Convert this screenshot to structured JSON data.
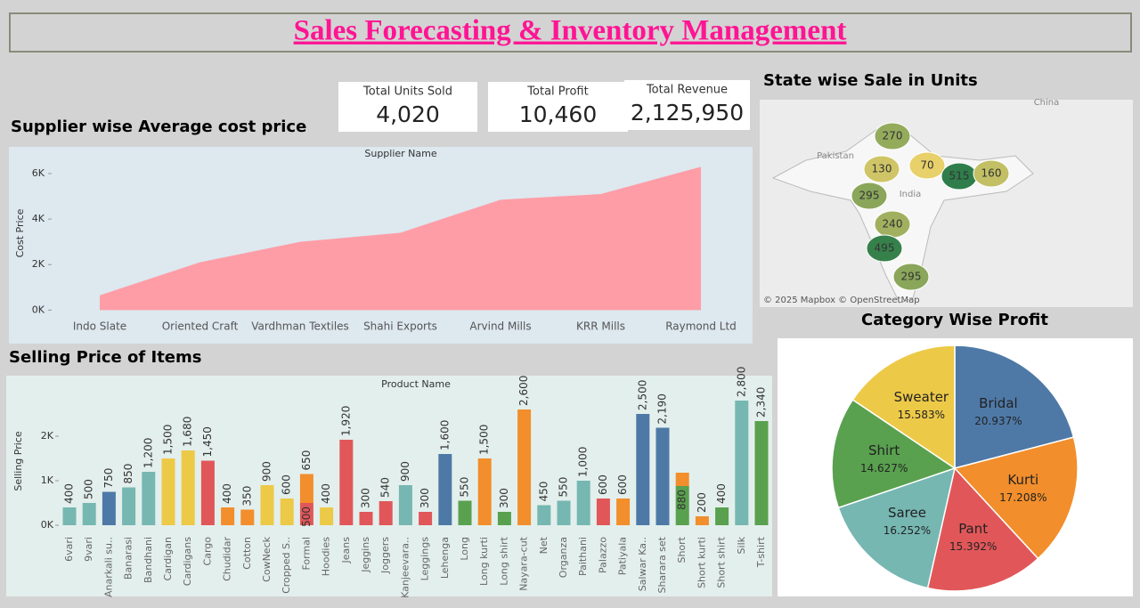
{
  "title": "Sales Forecasting & Inventory Management",
  "kpis": [
    {
      "label": "Total Units Sold",
      "value": "4,020"
    },
    {
      "label": "Total Profit",
      "value": "10,460"
    },
    {
      "label": "Total Revenue",
      "value": "2,125,950"
    }
  ],
  "map": {
    "title": "State wise Sale in Units",
    "attribution": "© 2025 Mapbox © OpenStreetMap",
    "place_labels": [
      "Pakistan",
      "India",
      "China"
    ],
    "values": [
      270,
      130,
      70,
      515,
      160,
      295,
      240,
      495,
      295
    ]
  },
  "chart_data": [
    {
      "type": "area",
      "title": "Supplier wise Average cost price",
      "x_label": "Supplier Name",
      "y_label": "Cost Price",
      "categories": [
        "Indo Slate",
        "Oriented Craft",
        "Vardhman Textiles",
        "Shahi Exports",
        "Arvind Mills",
        "KRR Mills",
        "Raymond Ltd"
      ],
      "values": [
        650,
        2100,
        3000,
        3400,
        4850,
        5100,
        6300
      ],
      "color": "#ff9da7",
      "ylim": [
        -300,
        6900
      ],
      "yticks": [
        {
          "value": 0,
          "label": "0K"
        },
        {
          "value": 2000,
          "label": "2K"
        },
        {
          "value": 4000,
          "label": "4K"
        },
        {
          "value": 6000,
          "label": "6K"
        }
      ],
      "grid": false
    },
    {
      "type": "stacked_bar",
      "title": "Selling Price of Items",
      "x_label": "Product Name",
      "y_label": "Selling Price",
      "categories": [
        "6vari",
        "9vari",
        "Anarkali su..",
        "Banarasi",
        "Bandhani",
        "Cardigan",
        "Cardigans",
        "Cargo",
        "Chudidar",
        "Cotton",
        "CowNeck",
        "Cropped S..",
        "Formal",
        "Hoodies",
        "Jeans",
        "Jeggins",
        "Joggers",
        "Kanjeevara..",
        "Leggings",
        "Lehenga",
        "Long",
        "Long kurti",
        "Long shirt",
        "Nayara-cut",
        "Net",
        "Organza",
        "Paithani",
        "Palazzo",
        "Patiyala",
        "Salwar Ka..",
        "Sharara set",
        "Short",
        "Short kurti",
        "Short shirt",
        "Silk",
        "T-shirt"
      ],
      "segments": [
        [
          {
            "value": 400,
            "color": "#76b7b2"
          }
        ],
        [
          {
            "value": 500,
            "color": "#76b7b2"
          }
        ],
        [
          {
            "value": 750,
            "color": "#4e79a7"
          }
        ],
        [
          {
            "value": 850,
            "color": "#76b7b2"
          }
        ],
        [
          {
            "value": 1200,
            "color": "#76b7b2",
            "value_label": "1,200"
          }
        ],
        [
          {
            "value": 1500,
            "color": "#edc948",
            "value_label": "1,500"
          }
        ],
        [
          {
            "value": 1680,
            "color": "#edc948",
            "value_label": "1,680"
          }
        ],
        [
          {
            "value": 1450,
            "color": "#e15759",
            "value_label": "1,450"
          }
        ],
        [
          {
            "value": 400,
            "color": "#f28e2b"
          }
        ],
        [
          {
            "value": 350,
            "color": "#f28e2b"
          }
        ],
        [
          {
            "value": 900,
            "color": "#edc948"
          }
        ],
        [
          {
            "value": 600,
            "color": "#edc948"
          }
        ],
        [
          {
            "value": 500,
            "color": "#e15759"
          },
          {
            "value": 650,
            "color": "#f28e2b"
          }
        ],
        [
          {
            "value": 400,
            "color": "#edc948"
          }
        ],
        [
          {
            "value": 1920,
            "color": "#e15759",
            "value_label": "1,920"
          }
        ],
        [
          {
            "value": 300,
            "color": "#e15759"
          }
        ],
        [
          {
            "value": 540,
            "color": "#e15759"
          }
        ],
        [
          {
            "value": 900,
            "color": "#76b7b2"
          }
        ],
        [
          {
            "value": 300,
            "color": "#e15759"
          }
        ],
        [
          {
            "value": 1600,
            "color": "#4e79a7",
            "value_label": "1,600"
          }
        ],
        [
          {
            "value": 550,
            "color": "#59a14f"
          }
        ],
        [
          {
            "value": 1500,
            "color": "#f28e2b",
            "value_label": "1,500"
          }
        ],
        [
          {
            "value": 300,
            "color": "#59a14f"
          }
        ],
        [
          {
            "value": 2600,
            "color": "#f28e2b",
            "value_label": "2,600"
          }
        ],
        [
          {
            "value": 450,
            "color": "#76b7b2"
          }
        ],
        [
          {
            "value": 550,
            "color": "#76b7b2"
          }
        ],
        [
          {
            "value": 1000,
            "color": "#76b7b2",
            "value_label": "1,000"
          }
        ],
        [
          {
            "value": 600,
            "color": "#e15759"
          }
        ],
        [
          {
            "value": 600,
            "color": "#f28e2b"
          }
        ],
        [
          {
            "value": 2500,
            "color": "#4e79a7",
            "value_label": "2,500"
          }
        ],
        [
          {
            "value": 2190,
            "color": "#4e79a7",
            "value_label": "2,190"
          }
        ],
        [
          {
            "value": 880,
            "color": "#59a14f"
          },
          {
            "value": 300,
            "color": "#f28e2b",
            "hidden_label": true
          }
        ],
        [
          {
            "value": 200,
            "color": "#f28e2b"
          }
        ],
        [
          {
            "value": 400,
            "color": "#59a14f"
          }
        ],
        [
          {
            "value": 2800,
            "color": "#76b7b2",
            "value_label": "2,800"
          }
        ],
        [
          {
            "value": 2340,
            "color": "#59a14f",
            "value_label": "2,340"
          }
        ]
      ],
      "ylim": [
        -160,
        2860
      ],
      "yticks": [
        {
          "value": 0,
          "label": "0K"
        },
        {
          "value": 1000,
          "label": "1K"
        },
        {
          "value": 2000,
          "label": "2K"
        }
      ],
      "grid": false
    },
    {
      "type": "pie",
      "title": "Category Wise Profit",
      "categories": [
        "Bridal",
        "Kurti",
        "Pant",
        "Saree",
        "Shirt",
        "Sweater"
      ],
      "values": [
        20.937,
        17.208,
        15.392,
        16.252,
        14.627,
        15.583
      ],
      "value_labels": [
        "20.937%",
        "17.208%",
        "15.392%",
        "16.252%",
        "14.627%",
        "15.583%"
      ],
      "colors": [
        "#4e79a7",
        "#f28e2b",
        "#e15759",
        "#76b7b2",
        "#59a14f",
        "#edc948"
      ]
    }
  ]
}
